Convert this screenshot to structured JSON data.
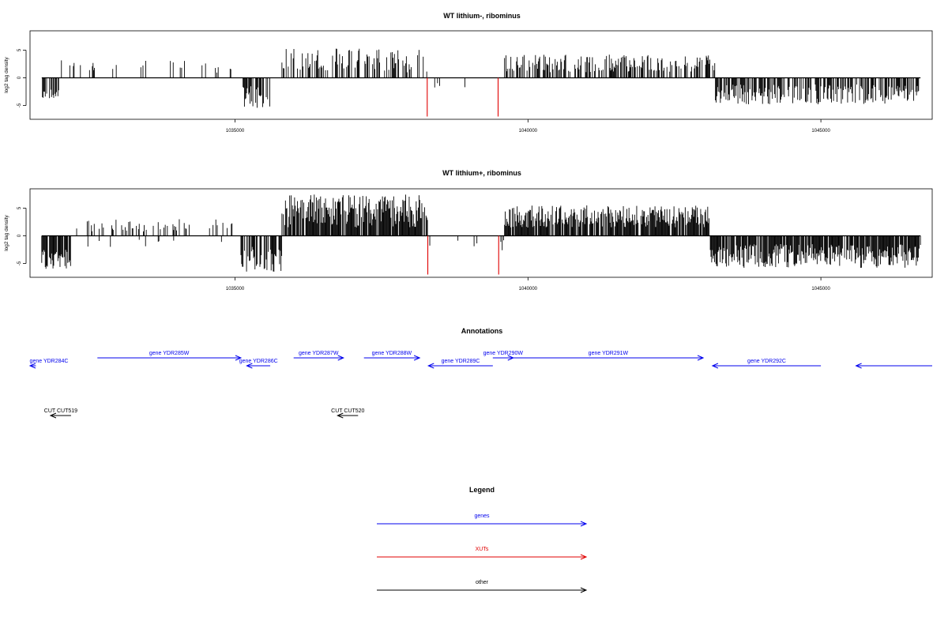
{
  "chart_data": [
    {
      "type": "bar",
      "title": "WT lithium-, ribominus",
      "ylabel": "log2 tag density",
      "xlim": [
        1031500,
        1046900
      ],
      "ylim": [
        -7.5,
        8.5
      ],
      "y_ticks": [
        5,
        0,
        -5
      ],
      "x_ticks": [
        1035000,
        1040000,
        1045000
      ],
      "x_tick_labels": [
        "1035000",
        "1040000",
        "1045000"
      ],
      "series": [
        {
          "values_note": "dense per-position signal",
          "segments": [
            {
              "from": 1031700,
              "to": 1032000,
              "sign": -1,
              "min": 2.0,
              "max": 4.0,
              "density": 0.6
            },
            {
              "from": 1032000,
              "to": 1035000,
              "sign": 1,
              "min": 0.8,
              "max": 3.2,
              "density": 0.08
            },
            {
              "from": 1035100,
              "to": 1035600,
              "sign": -1,
              "min": 1.5,
              "max": 5.5,
              "density": 0.5
            },
            {
              "from": 1035800,
              "to": 1038300,
              "sign": 1,
              "min": 1.0,
              "max": 5.3,
              "density": 0.45
            },
            {
              "from": 1038300,
              "to": 1039600,
              "sign": -1,
              "min": 0.8,
              "max": 2.2,
              "density": 0.04
            },
            {
              "from": 1039600,
              "to": 1043200,
              "sign": 1,
              "min": 1.0,
              "max": 4.2,
              "density": 0.45
            },
            {
              "from": 1043200,
              "to": 1046700,
              "sign": -1,
              "min": 1.2,
              "max": 4.8,
              "density": 0.6
            }
          ]
        },
        {
          "name": "",
          "color": "#e00000",
          "x": [
            1038280,
            1039490
          ],
          "values": [
            -7.0,
            -7.0
          ]
        }
      ]
    },
    {
      "type": "bar",
      "title": "WT lithium+, ribominus",
      "ylabel": "log2 tag density",
      "xlim": [
        1031500,
        1046900
      ],
      "ylim": [
        -7.5,
        8.5
      ],
      "y_ticks": [
        5,
        0,
        -5
      ],
      "x_ticks": [
        1035000,
        1040000,
        1045000
      ],
      "x_tick_labels": [
        "1035000",
        "1040000",
        "1045000"
      ],
      "series": [
        {
          "values_note": "dense per-position signal",
          "segments": [
            {
              "from": 1031700,
              "to": 1032200,
              "sign": -1,
              "min": 2.5,
              "max": 6.0,
              "density": 0.8
            },
            {
              "from": 1032200,
              "to": 1035000,
              "sign": 1,
              "min": 0.8,
              "max": 3.0,
              "density": 0.2
            },
            {
              "from": 1032200,
              "to": 1035000,
              "sign": -1,
              "min": 0.5,
              "max": 2.5,
              "density": 0.05
            },
            {
              "from": 1035100,
              "to": 1035800,
              "sign": -1,
              "min": 2.0,
              "max": 6.5,
              "density": 0.7
            },
            {
              "from": 1035800,
              "to": 1038300,
              "sign": 1,
              "min": 1.5,
              "max": 7.5,
              "density": 0.9
            },
            {
              "from": 1038300,
              "to": 1039600,
              "sign": -1,
              "min": 0.8,
              "max": 3.0,
              "density": 0.08
            },
            {
              "from": 1039600,
              "to": 1043100,
              "sign": 1,
              "min": 1.5,
              "max": 5.5,
              "density": 0.85
            },
            {
              "from": 1043100,
              "to": 1046700,
              "sign": -1,
              "min": 1.5,
              "max": 5.8,
              "density": 0.85
            }
          ]
        },
        {
          "name": "",
          "color": "#e00000",
          "x": [
            1038290,
            1039500
          ],
          "values": [
            -7.0,
            -7.0
          ]
        }
      ]
    }
  ],
  "annotations": {
    "title": "Annotations",
    "features": [
      {
        "label": "gene YDR284C",
        "start": 1031600,
        "end": 1031450,
        "row": 2,
        "color": "#0000ee"
      },
      {
        "label": "gene YDR285W",
        "start": 1032650,
        "end": 1035100,
        "row": 1,
        "color": "#0000ee"
      },
      {
        "label": "gene YDR286C",
        "start": 1035600,
        "end": 1035200,
        "row": 2,
        "color": "#0000ee"
      },
      {
        "label": "gene YDR287W",
        "start": 1036000,
        "end": 1036850,
        "row": 1,
        "color": "#0000ee"
      },
      {
        "label": "gene YDR288W",
        "start": 1037200,
        "end": 1038150,
        "row": 1,
        "color": "#0000ee"
      },
      {
        "label": "gene YDR289C",
        "start": 1039400,
        "end": 1038300,
        "row": 2,
        "color": "#0000ee"
      },
      {
        "label": "gene YDR290W",
        "start": 1039400,
        "end": 1039750,
        "row": 1,
        "color": "#0000ee"
      },
      {
        "label": "gene YDR291W",
        "start": 1039750,
        "end": 1042990,
        "row": 1,
        "color": "#0000ee"
      },
      {
        "label": "gene YDR292C",
        "start": 1045000,
        "end": 1043150,
        "row": 2,
        "color": "#0000ee"
      },
      {
        "label": "",
        "start": 1046900,
        "end": 1045600,
        "row": 2,
        "color": "#0000ee"
      },
      {
        "label": "CUT CUT519",
        "start": 1032200,
        "end": 1031850,
        "row": 3,
        "color": "#000000"
      },
      {
        "label": "CUT CUT520",
        "start": 1037100,
        "end": 1036750,
        "row": 3,
        "color": "#000000"
      }
    ]
  },
  "legend": {
    "title": "Legend",
    "items": [
      {
        "label": "genes",
        "color": "#0000ee"
      },
      {
        "label": "XUTs",
        "color": "#e00000"
      },
      {
        "label": "other",
        "color": "#000000"
      }
    ]
  }
}
